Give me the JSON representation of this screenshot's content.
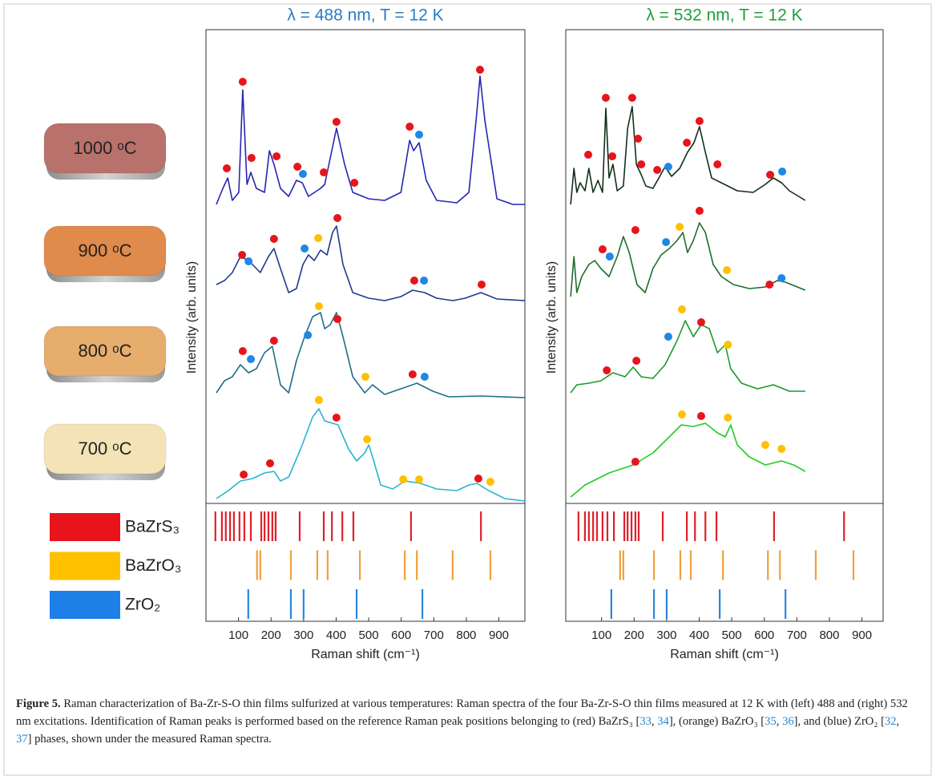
{
  "chart_data": [
    {
      "type": "line",
      "title": "λ = 488 nm, T = 12 K",
      "title_color": "#2a7cc7",
      "xlabel": "Raman shift (cm⁻¹)",
      "ylabel": "Intensity (arb. units)",
      "xlim": [
        0,
        980
      ],
      "ylim": [
        0,
        590
      ],
      "xticks": [
        100,
        200,
        300,
        400,
        500,
        600,
        700,
        800,
        900
      ],
      "series": [
        {
          "color": "#2626b4",
          "x": [
            32,
            52,
            67,
            81,
            101,
            113,
            126,
            138,
            155,
            180,
            195,
            209,
            229,
            254,
            278,
            296,
            315,
            352,
            365,
            401,
            426,
            451,
            500,
            549,
            599,
            626,
            638,
            655,
            677,
            709,
            771,
            808,
            830,
            842,
            857,
            894,
            943,
            980
          ],
          "y": [
            373,
            393,
            406,
            378,
            388,
            516,
            398,
            413,
            393,
            388,
            440,
            423,
            393,
            383,
            403,
            400,
            383,
            393,
            398,
            468,
            423,
            388,
            380,
            378,
            388,
            453,
            440,
            450,
            403,
            378,
            375,
            388,
            478,
            533,
            478,
            380,
            373,
            373
          ],
          "markers": [
            {
              "color": "#e8141c",
              "x": [
                64,
                113,
                140,
                217,
                281,
                362,
                401,
                456,
                626,
                842
              ],
              "y": [
                418,
                526,
                431,
                433,
                420,
                413,
                476,
                400,
                470,
                541
              ]
            },
            {
              "color": "#1e88e5",
              "x": [
                298,
                655
              ],
              "y": [
                411,
                460
              ]
            }
          ]
        },
        {
          "color": "#1f3a8f",
          "x": [
            32,
            57,
            81,
            106,
            131,
            167,
            192,
            209,
            229,
            254,
            278,
            298,
            315,
            333,
            352,
            372,
            389,
            401,
            421,
            451,
            500,
            549,
            599,
            635,
            672,
            709,
            759,
            796,
            845,
            894,
            980
          ],
          "y": [
            273,
            278,
            288,
            308,
            303,
            288,
            308,
            318,
            293,
            263,
            268,
            298,
            310,
            303,
            316,
            310,
            338,
            346,
            298,
            263,
            256,
            253,
            258,
            266,
            263,
            256,
            253,
            256,
            263,
            255,
            253
          ],
          "markers": [
            {
              "color": "#e8141c",
              "x": [
                111,
                209,
                404,
                640,
                847
              ],
              "y": [
                310,
                330,
                356,
                278,
                273
              ]
            },
            {
              "color": "#1e88e5",
              "x": [
                131,
                303,
                670
              ],
              "y": [
                302,
                318,
                278
              ]
            },
            {
              "color": "#ffc000",
              "x": [
                345
              ],
              "y": [
                331
              ]
            }
          ]
        },
        {
          "color": "#1f6e8c",
          "x": [
            32,
            57,
            81,
            106,
            131,
            155,
            180,
            204,
            229,
            254,
            278,
            303,
            328,
            352,
            365,
            382,
            401,
            421,
            451,
            488,
            512,
            549,
            599,
            648,
            697,
            746,
            845,
            980
          ],
          "y": [
            138,
            153,
            158,
            173,
            163,
            168,
            188,
            196,
            148,
            138,
            178,
            208,
            233,
            238,
            218,
            223,
            238,
            208,
            158,
            138,
            148,
            136,
            143,
            150,
            140,
            133,
            134,
            132
          ],
          "markers": [
            {
              "color": "#e8141c",
              "x": [
                113,
                209,
                404,
                635
              ],
              "y": [
                190,
                203,
                230,
                161
              ]
            },
            {
              "color": "#1e88e5",
              "x": [
                138,
                313,
                672
              ],
              "y": [
                180,
                210,
                158
              ]
            },
            {
              "color": "#ffc000",
              "x": [
                347,
                490
              ],
              "y": [
                246,
                158
              ]
            }
          ]
        },
        {
          "color": "#2bb5d0",
          "x": [
            32,
            69,
            106,
            143,
            180,
            209,
            229,
            254,
            291,
            328,
            347,
            365,
            389,
            406,
            438,
            463,
            488,
            500,
            512,
            537,
            574,
            611,
            660,
            709,
            771,
            808,
            833,
            869,
            919,
            980
          ],
          "y": [
            6,
            16,
            28,
            31,
            38,
            40,
            28,
            33,
            68,
            108,
            118,
            103,
            100,
            98,
            68,
            53,
            63,
            73,
            58,
            23,
            18,
            28,
            25,
            18,
            16,
            23,
            25,
            16,
            6,
            3
          ],
          "markers": [
            {
              "color": "#e8141c",
              "x": [
                116,
                197,
                401,
                837
              ],
              "y": [
                36,
                50,
                107,
                31
              ]
            },
            {
              "color": "#ffc000",
              "x": [
                347,
                495,
                606,
                655,
                874
              ],
              "y": [
                129,
                80,
                30,
                30,
                27
              ]
            }
          ]
        }
      ]
    },
    {
      "type": "line",
      "title": "λ = 532 nm, T = 12 K",
      "title_color": "#1fa03c",
      "xlabel": "Raman shift (cm⁻¹)",
      "ylabel": "Intensity (arb. units)",
      "xlim": [
        -10,
        965
      ],
      "ylim": [
        0,
        590
      ],
      "xticks": [
        100,
        200,
        300,
        400,
        500,
        600,
        700,
        800,
        900
      ],
      "series": [
        {
          "color": "#10301a",
          "x": [
            5,
            15,
            24,
            34,
            49,
            61,
            74,
            89,
            103,
            113,
            123,
            135,
            148,
            167,
            180,
            194,
            207,
            222,
            236,
            258,
            276,
            295,
            315,
            340,
            364,
            384,
            401,
            419,
            438,
            468,
            517,
            566,
            603,
            628,
            653,
            677,
            726
          ],
          "y": [
            373,
            418,
            388,
            400,
            390,
            418,
            388,
            403,
            388,
            493,
            406,
            423,
            390,
            396,
            468,
            495,
            423,
            410,
            396,
            393,
            406,
            420,
            408,
            418,
            438,
            450,
            470,
            438,
            406,
            400,
            390,
            388,
            398,
            406,
            400,
            390,
            378
          ],
          "markers": [
            {
              "color": "#e8141c",
              "x": [
                59,
                113,
                133,
                194,
                212,
                222,
                271,
                362,
                401,
                456,
                618
              ],
              "y": [
                435,
                506,
                433,
                506,
                455,
                423,
                416,
                450,
                477,
                423,
                410
              ]
            },
            {
              "color": "#1e88e5",
              "x": [
                305,
                655
              ],
              "y": [
                420,
                414
              ]
            }
          ]
        },
        {
          "color": "#1e6e2c",
          "x": [
            5,
            15,
            24,
            39,
            61,
            79,
            98,
            123,
            148,
            167,
            185,
            209,
            234,
            258,
            283,
            308,
            332,
            350,
            364,
            382,
            401,
            419,
            443,
            468,
            505,
            554,
            603,
            640,
            665,
            726
          ],
          "y": [
            258,
            308,
            263,
            283,
            298,
            303,
            293,
            283,
            308,
            333,
            313,
            273,
            263,
            293,
            310,
            318,
            328,
            338,
            313,
            328,
            350,
            338,
            298,
            283,
            273,
            268,
            270,
            278,
            276,
            266
          ],
          "markers": [
            {
              "color": "#e8141c",
              "x": [
                103,
                204,
                401,
                616
              ],
              "y": [
                317,
                341,
                365,
                273
              ]
            },
            {
              "color": "#1e88e5",
              "x": [
                125,
                298,
                653
              ],
              "y": [
                308,
                326,
                281
              ]
            },
            {
              "color": "#ffc000",
              "x": [
                340,
                485
              ],
              "y": [
                345,
                291
              ]
            }
          ]
        },
        {
          "color": "#1a9a2a",
          "x": [
            5,
            24,
            61,
            98,
            135,
            172,
            197,
            222,
            258,
            295,
            332,
            357,
            382,
            406,
            431,
            456,
            480,
            497,
            530,
            579,
            628,
            677,
            726
          ],
          "y": [
            138,
            148,
            150,
            153,
            163,
            158,
            170,
            158,
            156,
            173,
            203,
            228,
            208,
            223,
            218,
            188,
            198,
            168,
            150,
            143,
            148,
            140,
            140
          ],
          "markers": [
            {
              "color": "#e8141c",
              "x": [
                116,
                207,
                406
              ],
              "y": [
                166,
                178,
                226
              ]
            },
            {
              "color": "#1e88e5",
              "x": [
                305
              ],
              "y": [
                208
              ]
            },
            {
              "color": "#ffc000",
              "x": [
                347,
                488
              ],
              "y": [
                242,
                198
              ]
            }
          ]
        },
        {
          "color": "#22cc22",
          "x": [
            5,
            49,
            123,
            197,
            258,
            308,
            345,
            382,
            419,
            456,
            480,
            497,
            517,
            554,
            603,
            653,
            690,
            726
          ],
          "y": [
            8,
            23,
            38,
            48,
            63,
            83,
            98,
            96,
            100,
            88,
            83,
            98,
            73,
            58,
            48,
            53,
            48,
            40
          ],
          "markers": [
            {
              "color": "#e8141c",
              "x": [
                204,
                406
              ],
              "y": [
                52,
                109
              ]
            },
            {
              "color": "#ffc000",
              "x": [
                347,
                488,
                603,
                653
              ],
              "y": [
                111,
                107,
                73,
                68
              ]
            }
          ]
        }
      ]
    }
  ],
  "figure": {
    "temperatures": [
      {
        "label": "1000 ᵒC",
        "color": "#b8716b"
      },
      {
        "label": "900 ᵒC",
        "color": "#e08a4c"
      },
      {
        "label": "800 ᵒC",
        "color": "#e6ad6c"
      },
      {
        "label": "700 ᵒC",
        "color": "#f3e3b6"
      }
    ],
    "phases": [
      {
        "name": "BaZrS₃",
        "color": "#e8141c",
        "line_color": "#e0202a",
        "positions": [
          29,
          49,
          61,
          74,
          86,
          103,
          118,
          138,
          170,
          180,
          192,
          204,
          214,
          288,
          362,
          387,
          419,
          453,
          630,
          845
        ]
      },
      {
        "name": "BaZrO₃",
        "color": "#ffc000",
        "line_color": "#f2a03c",
        "positions": [
          157,
          167,
          261,
          342,
          374,
          473,
          611,
          648,
          758,
          874
        ]
      },
      {
        "name": "ZrO₂",
        "color": "#1e7fe8",
        "line_color": "#2a86e0",
        "positions": [
          130,
          261,
          300,
          463,
          665
        ]
      }
    ]
  },
  "caption": {
    "label": "Figure 5.",
    "runs": [
      {
        "text": " Raman characterization of Ba-Zr-S-O thin films sulfurized at various temperatures: Raman spectra of the four Ba-Zr-S-O thin films measured at 12 K with (left) 488 and (right) 532 nm excitations. Identification of Raman peaks is performed based on the reference Raman peak positions belonging to (red) BaZrS₃ ["
      },
      {
        "text": "33",
        "link": true
      },
      {
        "text": ", "
      },
      {
        "text": "34",
        "link": true
      },
      {
        "text": "], (orange) BaZrO₃ ["
      },
      {
        "text": "35",
        "link": true
      },
      {
        "text": ", "
      },
      {
        "text": "36",
        "link": true
      },
      {
        "text": "], and (blue) ZrO₂ ["
      },
      {
        "text": "32",
        "link": true
      },
      {
        "text": ", "
      },
      {
        "text": "37",
        "link": true
      },
      {
        "text": "] phases, shown under the measured Raman spectra."
      }
    ]
  }
}
